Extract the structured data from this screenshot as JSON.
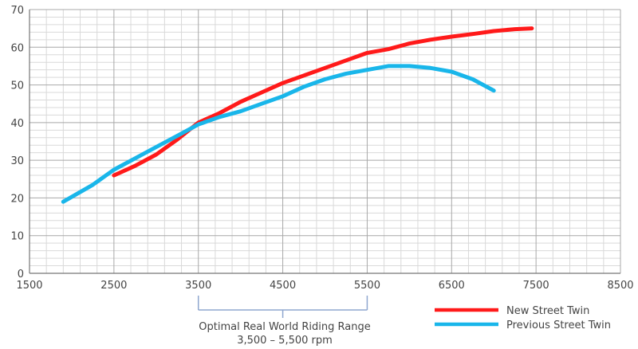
{
  "chart_data": {
    "type": "line",
    "xlim": [
      1500,
      8500
    ],
    "ylim": [
      0,
      70
    ],
    "x_ticks": [
      1500,
      2500,
      3500,
      4500,
      5500,
      6500,
      7500,
      8500
    ],
    "y_ticks": [
      0,
      10,
      20,
      30,
      40,
      50,
      60,
      70
    ],
    "grid": "on",
    "legend_position": "bottom-right",
    "annotation": {
      "range": [
        3500,
        5500
      ],
      "line1": "Optimal Real World Riding Range",
      "line2": "3,500 – 5,500 rpm"
    },
    "series": [
      {
        "name": "New Street Twin",
        "color": "#ff1a1a",
        "x": [
          2500,
          2750,
          3000,
          3250,
          3500,
          3750,
          4000,
          4250,
          4500,
          4750,
          5000,
          5250,
          5500,
          5750,
          6000,
          6250,
          6500,
          6750,
          7000,
          7250,
          7450
        ],
        "y": [
          26,
          28.5,
          31.5,
          35.5,
          40,
          42.5,
          45.5,
          48,
          50.5,
          52.5,
          54.5,
          56.5,
          58.5,
          59.5,
          61,
          62,
          62.8,
          63.5,
          64.3,
          64.8,
          65
        ]
      },
      {
        "name": "Previous Street Twin",
        "color": "#19b6ea",
        "x": [
          1900,
          2250,
          2500,
          2750,
          3000,
          3250,
          3500,
          3750,
          4000,
          4250,
          4500,
          4750,
          5000,
          5250,
          5500,
          5750,
          6000,
          6250,
          6500,
          6750,
          7000
        ],
        "y": [
          19,
          23.5,
          27.5,
          30.5,
          33.5,
          36.5,
          39.5,
          41.5,
          43,
          45,
          47,
          49.5,
          51.5,
          53,
          54,
          55,
          55,
          54.5,
          53.5,
          51.5,
          48.5
        ]
      }
    ]
  }
}
